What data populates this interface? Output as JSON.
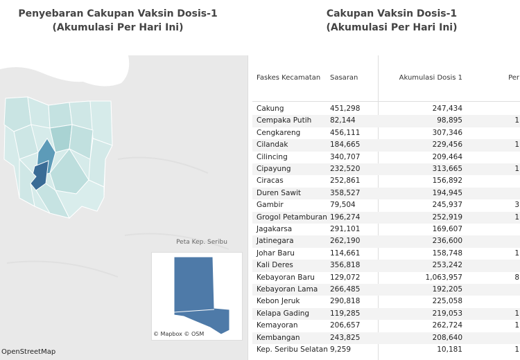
{
  "left_title": {
    "line1": "Penyebaran Cakupan Vaksin Dosis-1",
    "line2": "(Akumulasi Per Hari Ini)"
  },
  "right_title": {
    "line1": "Cakupan Vaksin Dosis-1",
    "line2": "(Akumulasi Per Hari Ini)"
  },
  "map": {
    "attribution": "OpenStreetMap",
    "inset_label": "Peta Kep. Seribu",
    "inset_attribution": "© Mapbox  © OSM"
  },
  "table": {
    "headers": [
      "Faskes Kecamatan",
      "Sasaran",
      "Akumulasi Dosis 1",
      "Per"
    ],
    "rows": [
      {
        "kecamatan": "Cakung",
        "sasaran": "451,298",
        "dosis1": "247,434",
        "per": ""
      },
      {
        "kecamatan": "Cempaka Putih",
        "sasaran": "82,144",
        "dosis1": "98,895",
        "per": "1"
      },
      {
        "kecamatan": "Cengkareng",
        "sasaran": "456,111",
        "dosis1": "307,346",
        "per": ""
      },
      {
        "kecamatan": "Cilandak",
        "sasaran": "184,665",
        "dosis1": "229,456",
        "per": "1"
      },
      {
        "kecamatan": "Cilincing",
        "sasaran": "340,707",
        "dosis1": "209,464",
        "per": ""
      },
      {
        "kecamatan": "Cipayung",
        "sasaran": "232,520",
        "dosis1": "313,665",
        "per": "1"
      },
      {
        "kecamatan": "Ciracas",
        "sasaran": "252,861",
        "dosis1": "156,892",
        "per": ""
      },
      {
        "kecamatan": "Duren Sawit",
        "sasaran": "358,527",
        "dosis1": "194,945",
        "per": ""
      },
      {
        "kecamatan": "Gambir",
        "sasaran": "79,504",
        "dosis1": "245,937",
        "per": "3"
      },
      {
        "kecamatan": "Grogol Petamburan",
        "sasaran": "196,274",
        "dosis1": "252,919",
        "per": "1"
      },
      {
        "kecamatan": "Jagakarsa",
        "sasaran": "291,101",
        "dosis1": "169,607",
        "per": ""
      },
      {
        "kecamatan": "Jatinegara",
        "sasaran": "262,190",
        "dosis1": "236,600",
        "per": ""
      },
      {
        "kecamatan": "Johar Baru",
        "sasaran": "114,661",
        "dosis1": "158,748",
        "per": "1"
      },
      {
        "kecamatan": "Kali Deres",
        "sasaran": "356,818",
        "dosis1": "253,242",
        "per": ""
      },
      {
        "kecamatan": "Kebayoran Baru",
        "sasaran": "129,072",
        "dosis1": "1,063,957",
        "per": "8"
      },
      {
        "kecamatan": "Kebayoran Lama",
        "sasaran": "266,485",
        "dosis1": "192,205",
        "per": ""
      },
      {
        "kecamatan": "Kebon Jeruk",
        "sasaran": "290,818",
        "dosis1": "225,058",
        "per": ""
      },
      {
        "kecamatan": "Kelapa Gading",
        "sasaran": "119,285",
        "dosis1": "219,053",
        "per": "1"
      },
      {
        "kecamatan": "Kemayoran",
        "sasaran": "206,657",
        "dosis1": "262,724",
        "per": "1"
      },
      {
        "kecamatan": "Kembangan",
        "sasaran": "243,825",
        "dosis1": "208,640",
        "per": ""
      },
      {
        "kecamatan": "Kep. Seribu Selatan",
        "sasaran": "9,259",
        "dosis1": "10,181",
        "per": "1"
      }
    ]
  },
  "colors": {
    "map_light": "#d8ecec",
    "map_mid": "#a8d4d4",
    "map_dark": "#4c8db0",
    "map_darkest": "#2f5d8a",
    "inset_fill": "#4e7aa8"
  }
}
